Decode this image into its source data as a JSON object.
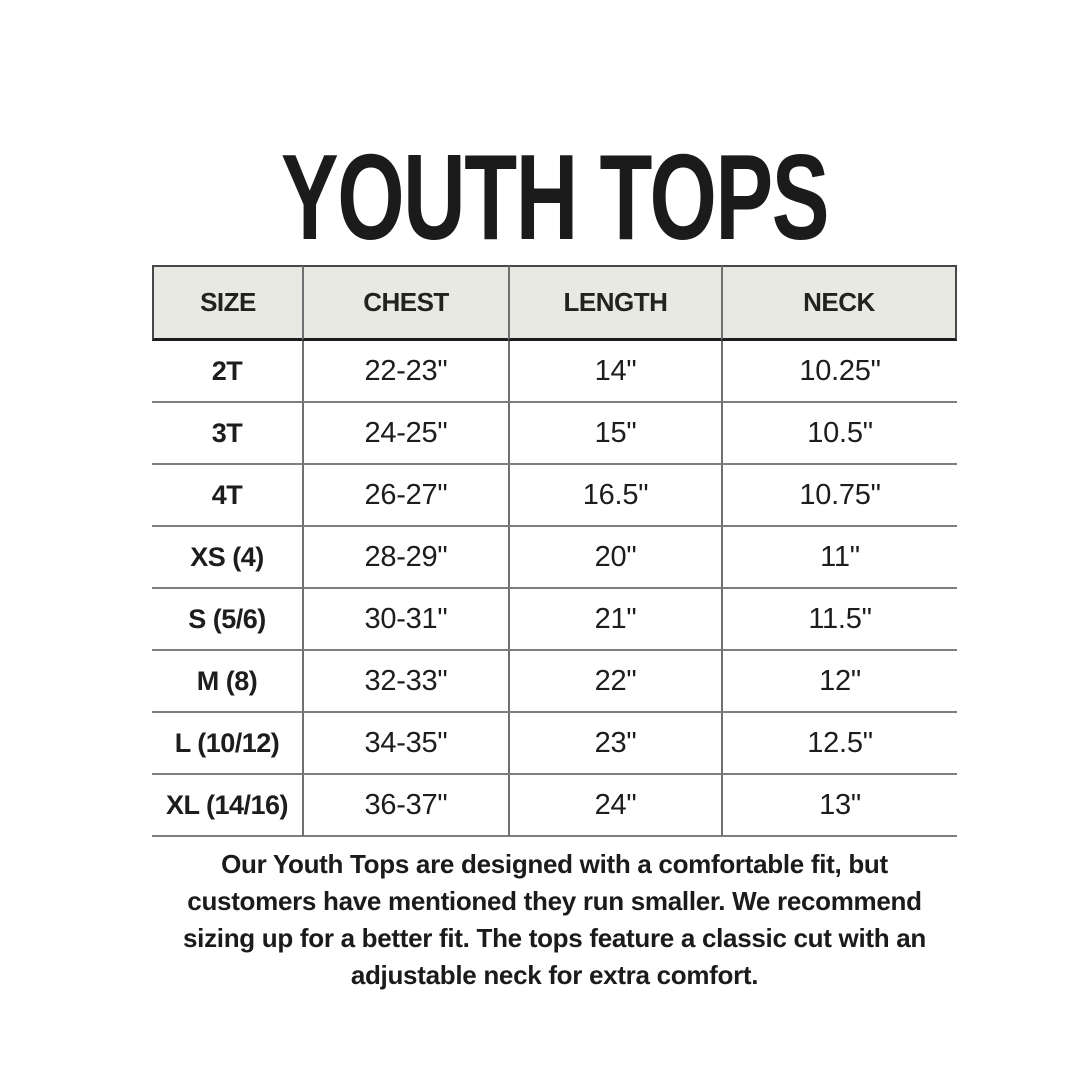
{
  "title": "YOUTH TOPS",
  "colors": {
    "background": "#ffffff",
    "header_bg": "#e9e9e3",
    "text": "#1d1d1d",
    "header_border": "#474747",
    "grid_line": "#7e7e7e"
  },
  "table": {
    "columns": [
      "SIZE",
      "CHEST",
      "LENGTH",
      "NECK"
    ],
    "rows": [
      {
        "size": "2T",
        "chest": "22-23\"",
        "length": "14\"",
        "neck": "10.25\""
      },
      {
        "size": "3T",
        "chest": "24-25\"",
        "length": "15\"",
        "neck": "10.5\""
      },
      {
        "size": "4T",
        "chest": "26-27\"",
        "length": "16.5\"",
        "neck": "10.75\""
      },
      {
        "size": "XS (4)",
        "chest": "28-29\"",
        "length": "20\"",
        "neck": "11\""
      },
      {
        "size": "S (5/6)",
        "chest": "30-31\"",
        "length": "21\"",
        "neck": "11.5\""
      },
      {
        "size": "M (8)",
        "chest": "32-33\"",
        "length": "22\"",
        "neck": "12\""
      },
      {
        "size": "L (10/12)",
        "chest": "34-35\"",
        "length": "23\"",
        "neck": "12.5\""
      },
      {
        "size": "XL (14/16)",
        "chest": "36-37\"",
        "length": "24\"",
        "neck": "13\""
      }
    ]
  },
  "footer": {
    "lines": [
      "Our Youth Tops are designed with a comfortable fit, but",
      "customers have mentioned they run smaller. We recommend",
      "sizing up for a better fit. The tops feature a classic cut with an",
      "adjustable neck for extra comfort."
    ]
  }
}
